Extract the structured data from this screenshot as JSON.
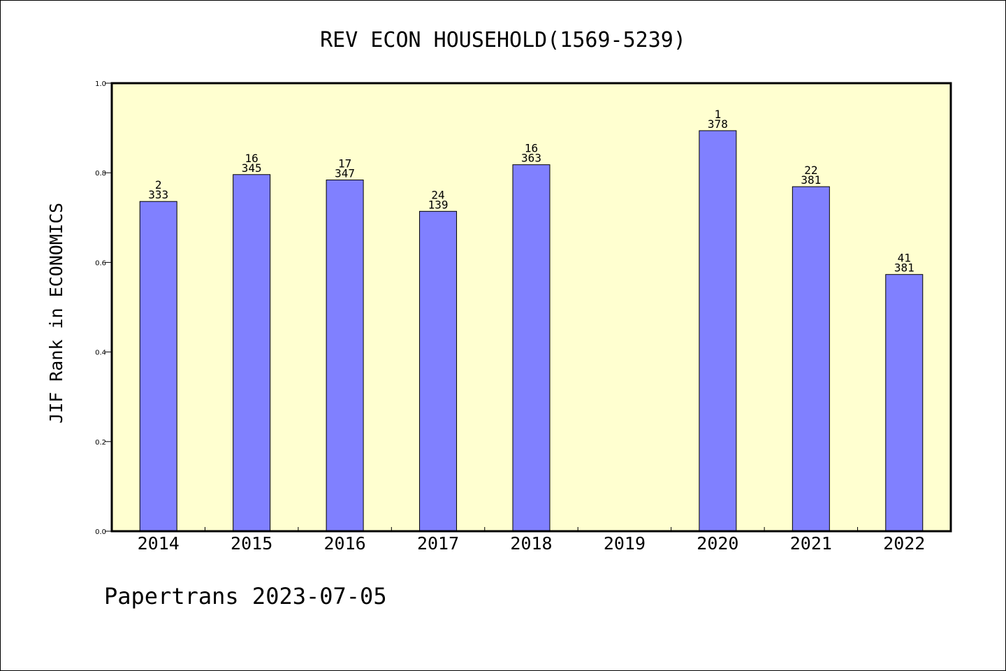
{
  "chart_data": {
    "type": "bar",
    "title": "REV ECON HOUSEHOLD(1569-5239)",
    "ylabel": "JIF Rank in ECONOMICS",
    "xlabel": "",
    "categories": [
      "2014",
      "2015",
      "2016",
      "2017",
      "2018",
      "2019",
      "2020",
      "2021",
      "2022"
    ],
    "values": [
      0.736,
      0.796,
      0.784,
      0.714,
      0.818,
      null,
      0.894,
      0.769,
      0.573
    ],
    "rank_labels": [
      "2",
      "16",
      "17",
      "24",
      "16",
      "",
      "1",
      "22",
      "41"
    ],
    "total_labels": [
      "333",
      "345",
      "347",
      "139",
      "363",
      "",
      "378",
      "381",
      "381"
    ],
    "ylim": [
      0,
      1.0
    ],
    "yticks": [
      0.0,
      0.2,
      0.4,
      0.6,
      0.8,
      1.0
    ],
    "ytick_labels": [
      "0.0",
      "0.2",
      "0.4",
      "0.6",
      "0.8",
      "1.0"
    ],
    "grid": false,
    "legend": "none",
    "colors": {
      "plot_background": "#ffffd0",
      "bar_fill": "#8080ff",
      "bar_stroke": "#000000",
      "text": "#000000"
    }
  },
  "footer": {
    "text": "Papertrans 2023-07-05"
  }
}
